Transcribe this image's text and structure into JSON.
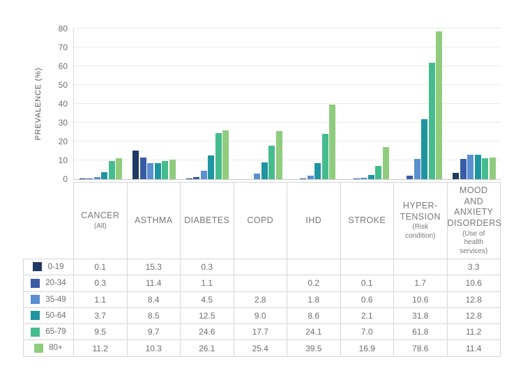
{
  "chart_data": {
    "type": "bar",
    "title": "",
    "xlabel": "",
    "ylabel": "PREVALENCE (%)",
    "ylim": [
      0,
      80
    ],
    "yticks": [
      0,
      10,
      20,
      30,
      40,
      50,
      60,
      70,
      80
    ],
    "grid": true,
    "legend_position": "table-rows-left",
    "categories": [
      "CANCER (All)",
      "ASTHMA",
      "DIABETES",
      "COPD",
      "IHD",
      "STROKE",
      "HYPERTENSION (Risk condition)",
      "MOOD AND ANXIETY DISORDERS (Use of health services)"
    ],
    "series": [
      {
        "name": "0-19",
        "color": "#1f3a64",
        "values": [
          0.1,
          15.3,
          0.3,
          null,
          null,
          null,
          null,
          3.3
        ]
      },
      {
        "name": "20-34",
        "color": "#3a5ba6",
        "values": [
          0.3,
          11.4,
          1.1,
          null,
          0.2,
          0.1,
          1.7,
          10.6
        ]
      },
      {
        "name": "35-49",
        "color": "#5b8fd0",
        "values": [
          1.1,
          8.4,
          4.5,
          2.8,
          1.8,
          0.6,
          10.6,
          12.8
        ]
      },
      {
        "name": "50-64",
        "color": "#1f95a1",
        "values": [
          3.7,
          8.5,
          12.5,
          9.0,
          8.6,
          2.1,
          31.8,
          12.8
        ]
      },
      {
        "name": "65-79",
        "color": "#45bc8e",
        "values": [
          9.5,
          9.7,
          24.6,
          17.7,
          24.1,
          7.0,
          61.8,
          11.2
        ]
      },
      {
        "name": "80+",
        "color": "#90cc7d",
        "values": [
          11.2,
          10.3,
          26.1,
          25.4,
          39.5,
          16.9,
          78.6,
          11.4
        ]
      }
    ]
  },
  "table": {
    "headers": [
      {
        "title": "CANCER",
        "subtitle": "(All)"
      },
      {
        "title": "ASTHMA",
        "subtitle": ""
      },
      {
        "title": "DIABETES",
        "subtitle": ""
      },
      {
        "title": "COPD",
        "subtitle": ""
      },
      {
        "title": "IHD",
        "subtitle": ""
      },
      {
        "title": "STROKE",
        "subtitle": ""
      },
      {
        "title": "HYPER-\nTENSION",
        "subtitle": "(Risk\ncondition)"
      },
      {
        "title": "MOOD\nAND\nANXIETY\nDISORDERS",
        "subtitle": "(Use of\nhealth\nservices)"
      }
    ],
    "rows": [
      {
        "label": "0-19",
        "values": [
          "0.1",
          "15.3",
          "0.3",
          "",
          "",
          "",
          "",
          "3.3"
        ]
      },
      {
        "label": "20-34",
        "values": [
          "0.3",
          "11.4",
          "1.1",
          "",
          "0.2",
          "0.1",
          "1.7",
          "10.6"
        ]
      },
      {
        "label": "35-49",
        "values": [
          "1.1",
          "8.4",
          "4.5",
          "2.8",
          "1.8",
          "0.6",
          "10.6",
          "12.8"
        ]
      },
      {
        "label": "50-64",
        "values": [
          "3.7",
          "8.5",
          "12.5",
          "9.0",
          "8.6",
          "2.1",
          "31.8",
          "12.8"
        ]
      },
      {
        "label": "65-79",
        "values": [
          "9.5",
          "9.7",
          "24.6",
          "17.7",
          "24.1",
          "7.0",
          "61.8",
          "11.2"
        ]
      },
      {
        "label": "80+",
        "values": [
          "11.2",
          "10.3",
          "26.1",
          "25.4",
          "39.5",
          "16.9",
          "78.6",
          "11.4"
        ]
      }
    ]
  },
  "colors": {
    "gridline": "#e9eaea",
    "axis_line": "#c6c8ca",
    "table_border": "#d5d6d7",
    "value_text": "#6d6e71",
    "header_text": "#77787b"
  }
}
